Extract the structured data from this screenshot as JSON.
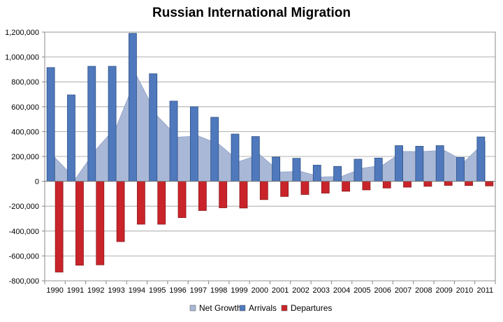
{
  "chart_data": {
    "type": "bar",
    "title": "Russian International Migration",
    "categories": [
      "1990",
      "1991",
      "1992",
      "1993",
      "1994",
      "1995",
      "1996",
      "1997",
      "1998",
      "1999",
      "2000",
      "2001",
      "2002",
      "2003",
      "2004",
      "2005",
      "2006",
      "2007",
      "2008",
      "2009",
      "2010",
      "2011"
    ],
    "series": [
      {
        "name": "Net Growth",
        "type": "area",
        "color": "#a9b8d6",
        "values": [
          190000,
          20000,
          255000,
          440000,
          845000,
          525000,
          355000,
          365000,
          300000,
          160000,
          215000,
          75000,
          80000,
          35000,
          40000,
          105000,
          130000,
          240000,
          240000,
          250000,
          160000,
          320000
        ]
      },
      {
        "name": "Arrivals",
        "type": "bar",
        "color": "#4f79bc",
        "values": [
          915000,
          695000,
          925000,
          925000,
          1190000,
          865000,
          645000,
          600000,
          515000,
          380000,
          360000,
          195000,
          185000,
          130000,
          120000,
          178000,
          187000,
          287000,
          282000,
          287000,
          192000,
          357000
        ]
      },
      {
        "name": "Departures",
        "type": "bar",
        "color": "#c9242a",
        "values": [
          -730000,
          -675000,
          -672000,
          -485000,
          -345000,
          -345000,
          -292000,
          -235000,
          -213000,
          -215000,
          -147000,
          -122000,
          -106000,
          -95000,
          -80000,
          -69000,
          -54000,
          -47000,
          -40000,
          -33000,
          -34000,
          -37000
        ]
      }
    ],
    "ylim": [
      -800000,
      1200000
    ],
    "yticks": [
      -800000,
      -600000,
      -400000,
      -200000,
      0,
      200000,
      400000,
      600000,
      800000,
      1000000,
      1200000
    ],
    "ytick_labels": [
      "-800,000",
      "-600,000",
      "-400,000",
      "-200,000",
      "0",
      "200,000",
      "400,000",
      "600,000",
      "800,000",
      "1,000,000",
      "1,200,000"
    ],
    "grid": true,
    "legend": "bottom"
  }
}
